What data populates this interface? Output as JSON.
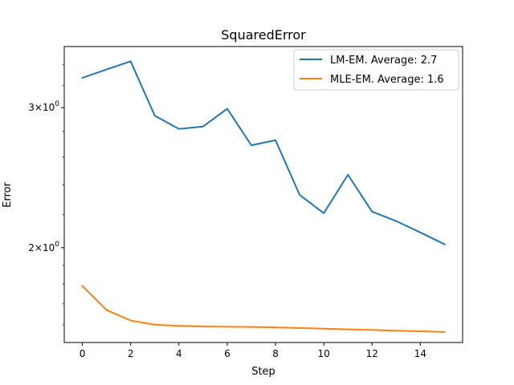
{
  "chart_data": {
    "type": "line",
    "title": "SquaredError",
    "xlabel": "Step",
    "ylabel": "Error",
    "yscale": "log",
    "xlim": [
      -0.75,
      15.75
    ],
    "ylim": [
      1.52,
      3.58
    ],
    "grid": false,
    "legend_position": "top-right",
    "x": [
      0,
      1,
      2,
      3,
      4,
      5,
      6,
      7,
      8,
      9,
      10,
      11,
      12,
      13,
      14,
      15
    ],
    "xticks": [
      0,
      2,
      4,
      6,
      8,
      10,
      12,
      14
    ],
    "yticks": [
      {
        "value": 2,
        "base": "2",
        "mult": "×",
        "pow": "10",
        "exp": "0"
      },
      {
        "value": 3,
        "base": "3",
        "mult": "×",
        "pow": "10",
        "exp": "0"
      }
    ],
    "series": [
      {
        "name": "LM-EM. Average: 2.7",
        "color": "#1f77b4",
        "values": [
          3.27,
          3.35,
          3.43,
          2.93,
          2.82,
          2.84,
          2.99,
          2.69,
          2.73,
          2.33,
          2.21,
          2.47,
          2.22,
          2.16,
          2.09,
          2.02
        ]
      },
      {
        "name": "MLE-EM. Average: 1.6",
        "color": "#ff7f0e",
        "values": [
          1.79,
          1.67,
          1.62,
          1.6,
          1.595,
          1.592,
          1.591,
          1.59,
          1.588,
          1.585,
          1.582,
          1.579,
          1.576,
          1.573,
          1.57,
          1.567
        ]
      }
    ]
  }
}
